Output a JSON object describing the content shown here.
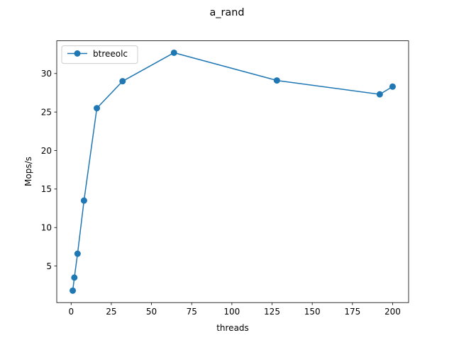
{
  "chart_data": {
    "type": "line",
    "title": "a_rand",
    "xlabel": "threads",
    "ylabel": "Mops/s",
    "xlim": [
      -8.95,
      209.95
    ],
    "ylim": [
      0.25,
      34.25
    ],
    "xticks": [
      0,
      25,
      50,
      75,
      100,
      125,
      150,
      175,
      200
    ],
    "yticks": [
      5,
      10,
      15,
      20,
      25,
      30
    ],
    "grid": false,
    "legend_position": "upper left",
    "series": [
      {
        "name": "btreeolc",
        "color": "#1f77b4",
        "marker": "circle",
        "x": [
          1,
          2,
          4,
          8,
          16,
          32,
          64,
          128,
          192,
          200
        ],
        "y": [
          1.8,
          3.5,
          6.6,
          13.5,
          25.5,
          29.0,
          32.7,
          29.1,
          27.3,
          28.3
        ]
      }
    ]
  }
}
